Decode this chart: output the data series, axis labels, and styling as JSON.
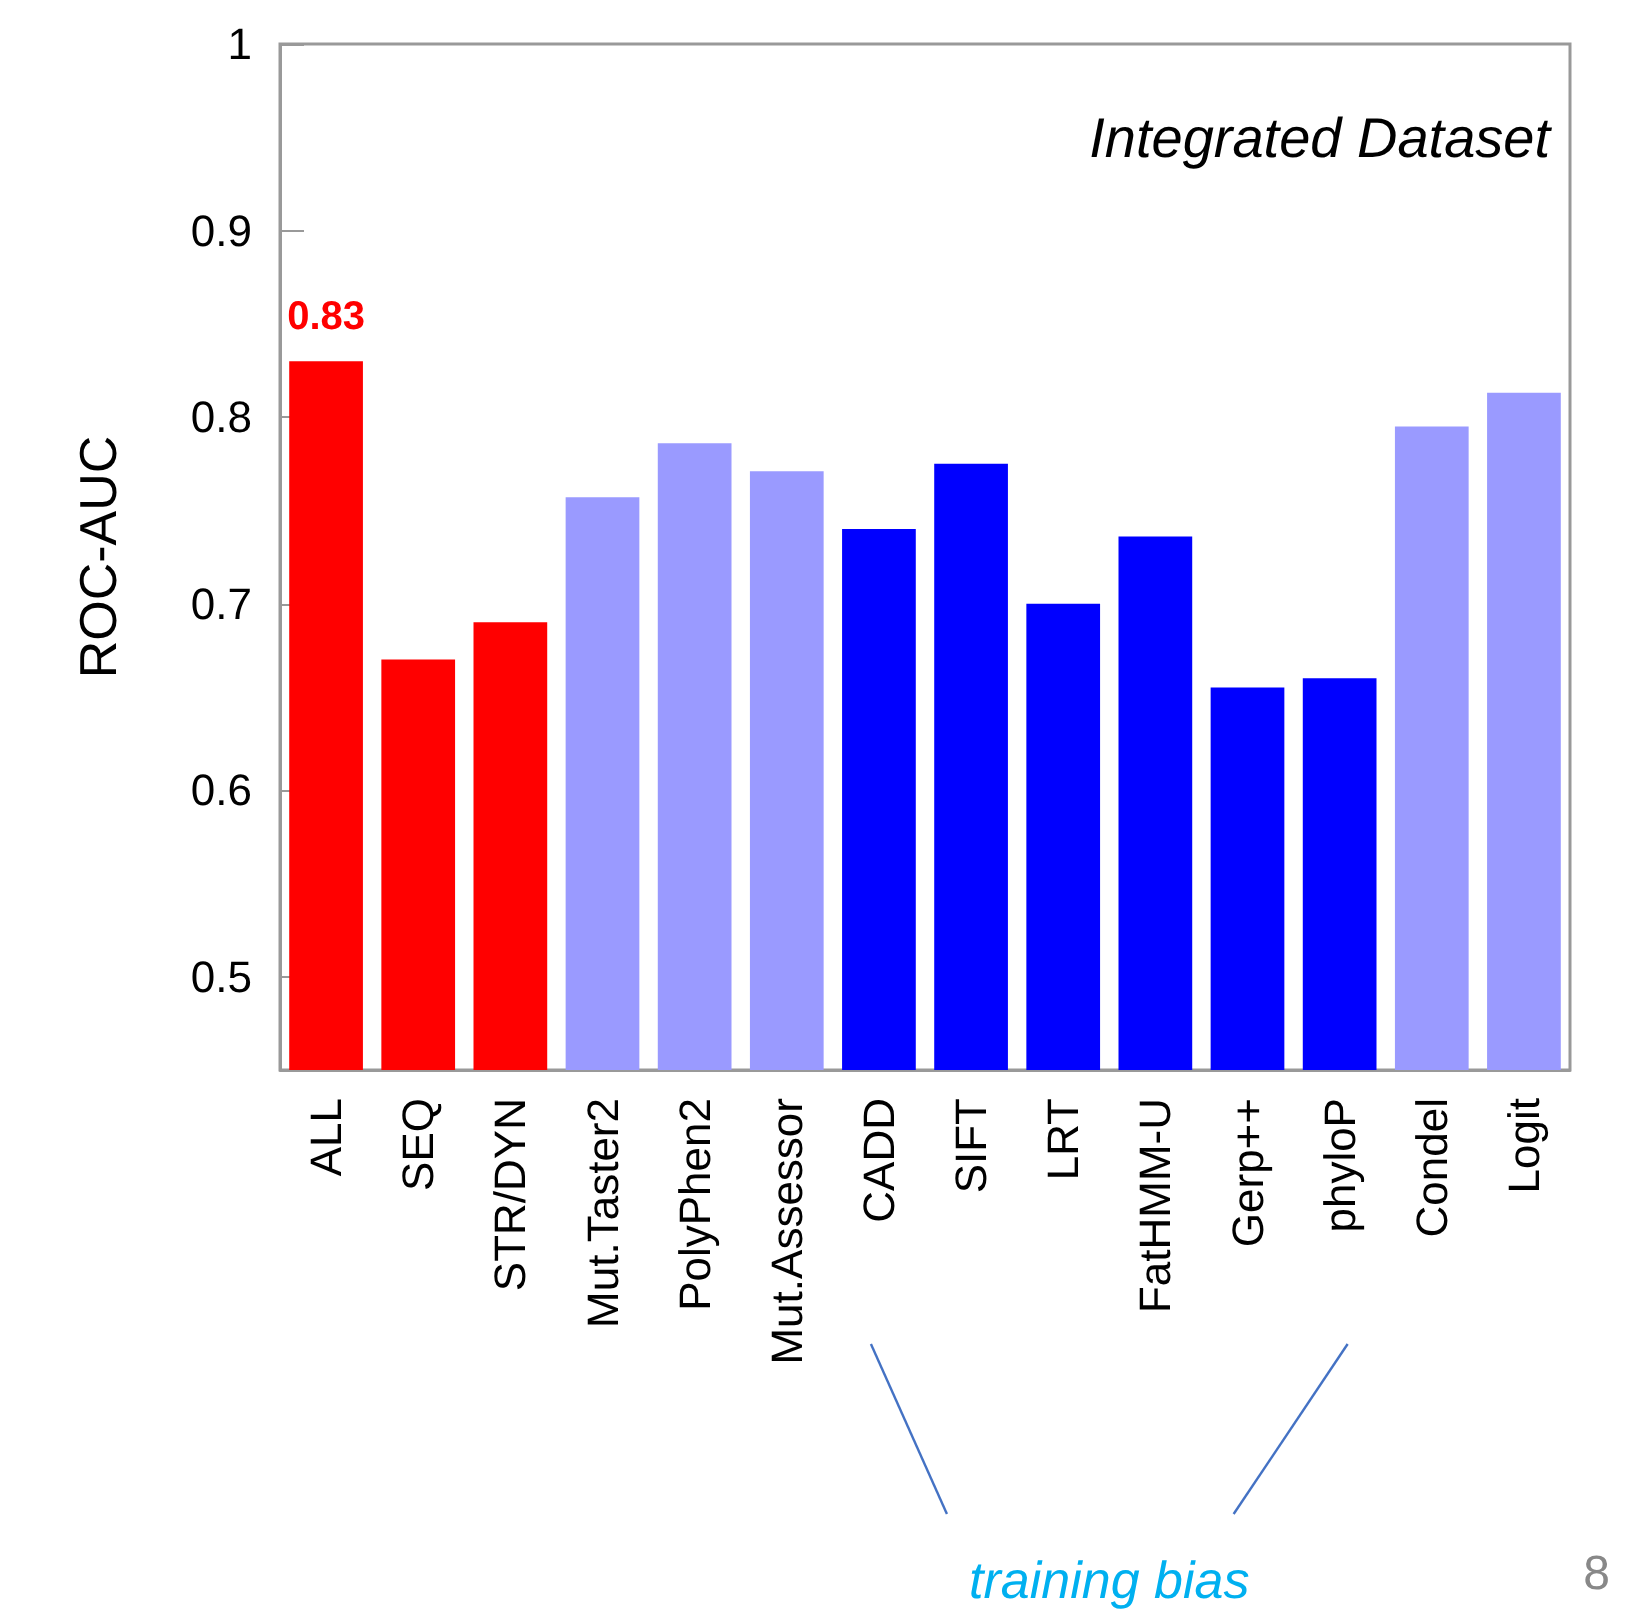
{
  "chart_data": {
    "type": "bar",
    "ylabel": "ROC-AUC",
    "categories": [
      "ALL",
      "SEQ",
      "STR/DYN",
      "Mut.Taster2",
      "PolyPhen2",
      "Mut.Assessor",
      "CADD",
      "SIFT",
      "LRT",
      "FatHMM-U",
      "Gerp++",
      "phyloP",
      "Condel",
      "Logit"
    ],
    "values": [
      0.83,
      0.67,
      0.69,
      0.757,
      0.786,
      0.771,
      0.74,
      0.775,
      0.7,
      0.736,
      0.655,
      0.66,
      0.795,
      0.813
    ],
    "colors": [
      "#ff0000",
      "#ff0000",
      "#ff0000",
      "#9a9aff",
      "#9a9aff",
      "#9a9aff",
      "#0000ff",
      "#0000ff",
      "#0000ff",
      "#0000ff",
      "#0000ff",
      "#0000ff",
      "#9a9aff",
      "#9a9aff"
    ],
    "value_labels": [
      "0.83",
      null,
      null,
      null,
      null,
      null,
      null,
      null,
      null,
      null,
      null,
      null,
      null,
      null
    ],
    "ylim": [
      0.45,
      1
    ],
    "yticks": [
      0.5,
      0.6,
      0.7,
      0.8,
      0.9,
      1
    ],
    "grid": false,
    "annotations": [
      "Integrated Dataset",
      "training bias",
      "8"
    ]
  }
}
